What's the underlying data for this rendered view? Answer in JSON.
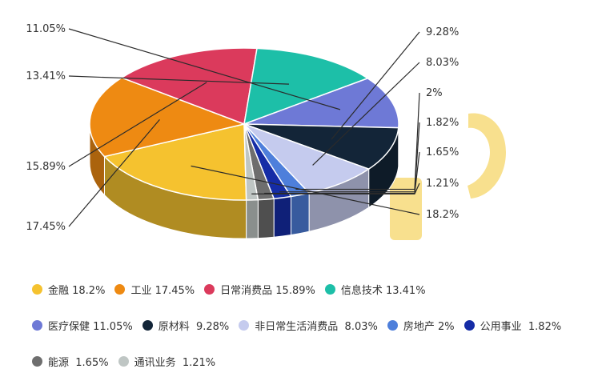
{
  "chart_data": {
    "type": "pie",
    "style": "3d-pie-with-callouts",
    "legend_position": "bottom",
    "series": [
      {
        "name": "金融",
        "value": 18.2,
        "label": "18.2%",
        "legend": "金融 18.2%",
        "color": "#F5C22F"
      },
      {
        "name": "工业",
        "value": 17.45,
        "label": "17.45%",
        "legend": "工业 17.45%",
        "color": "#EE8A12"
      },
      {
        "name": "日常消费品",
        "value": 15.89,
        "label": "15.89%",
        "legend": "日常消费品 15.89%",
        "color": "#DB3A5C"
      },
      {
        "name": "信息技术",
        "value": 13.41,
        "label": "13.41%",
        "legend": "信息技术 13.41%",
        "color": "#1DBFA8"
      },
      {
        "name": "医疗保健",
        "value": 11.05,
        "label": "11.05%",
        "legend": "医疗保健 11.05%",
        "color": "#6E79D6"
      },
      {
        "name": "原材料",
        "value": 9.28,
        "label": "9.28%",
        "legend": "原材料  9.28%",
        "color": "#132538"
      },
      {
        "name": "非日常生活消费品",
        "value": 8.03,
        "label": "8.03%",
        "legend": "非日常生活消费品  8.03%",
        "color": "#C5CBEE"
      },
      {
        "name": "房地产",
        "value": 2,
        "label": "2%",
        "legend": "房地产 2%",
        "color": "#4E7FDB"
      },
      {
        "name": "公用事业",
        "value": 1.82,
        "label": "1.82%",
        "legend": "公用事业  1.82%",
        "color": "#152CA6"
      },
      {
        "name": "能源",
        "value": 1.65,
        "label": "1.65%",
        "legend": "能源  1.65%",
        "color": "#6E6E6E"
      },
      {
        "name": "通讯业务",
        "value": 1.21,
        "label": "1.21%",
        "legend": "通讯业务  1.21%",
        "color": "#BFC6C4"
      }
    ],
    "legend_rows": [
      [
        0,
        1,
        2,
        3
      ],
      [
        4,
        5,
        6,
        7,
        8
      ],
      [
        9,
        10
      ]
    ],
    "highlight_color": "#F7DA7A"
  }
}
